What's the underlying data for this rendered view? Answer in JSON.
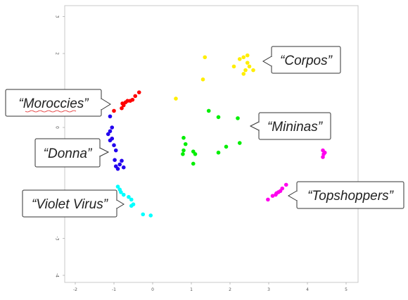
{
  "chart_data": {
    "type": "scatter",
    "title": "",
    "xlabel": "",
    "ylabel": "",
    "xlim": [
      -2.3,
      5.3
    ],
    "ylim": [
      -4.3,
      3.3
    ],
    "x_ticks": [
      "-2",
      "-1",
      "0",
      "1",
      "2",
      "3",
      "4",
      "5"
    ],
    "y_ticks": [
      "3",
      "2",
      "1",
      "0",
      "-1",
      "-2",
      "-3",
      "-4"
    ],
    "grid": false,
    "series": [
      {
        "name": "“Corpos”",
        "color": "#ffee00",
        "points": [
          [
            1.35,
            1.9
          ],
          [
            2.1,
            1.65
          ],
          [
            2.25,
            1.85
          ],
          [
            2.35,
            1.9
          ],
          [
            2.45,
            1.95
          ],
          [
            2.45,
            1.75
          ],
          [
            2.4,
            1.55
          ],
          [
            2.35,
            1.45
          ],
          [
            2.5,
            1.65
          ],
          [
            2.6,
            1.55
          ],
          [
            1.3,
            1.3
          ],
          [
            0.6,
            0.78
          ]
        ]
      },
      {
        "name": "“Moroccies”",
        "color": "#ff0000",
        "points": [
          [
            -1.0,
            0.45
          ],
          [
            -0.8,
            0.52
          ],
          [
            -0.75,
            0.6
          ],
          [
            -0.7,
            0.68
          ],
          [
            -0.65,
            0.72
          ],
          [
            -0.58,
            0.72
          ],
          [
            -0.52,
            0.75
          ],
          [
            -0.45,
            0.85
          ],
          [
            -0.35,
            0.95
          ],
          [
            -0.78,
            0.65
          ]
        ]
      },
      {
        "name": "“Donna”",
        "color": "#2200ee",
        "points": [
          [
            -1.1,
            0.3
          ],
          [
            -1.05,
            0.0
          ],
          [
            -1.15,
            -0.18
          ],
          [
            -1.1,
            -0.35
          ],
          [
            -1.0,
            -0.48
          ],
          [
            -0.95,
            -0.62
          ],
          [
            -0.98,
            -0.88
          ],
          [
            -0.85,
            -1.0
          ],
          [
            -0.75,
            -1.08
          ],
          [
            -0.9,
            -1.12
          ],
          [
            -1.05,
            -0.3
          ],
          [
            -1.1,
            -0.1
          ],
          [
            -0.8,
            -0.9
          ],
          [
            -0.95,
            -1.05
          ]
        ]
      },
      {
        "name": "“Violet Virus”",
        "color": "#00ffff",
        "points": [
          [
            -0.9,
            -1.6
          ],
          [
            -0.85,
            -1.68
          ],
          [
            -0.82,
            -1.75
          ],
          [
            -0.75,
            -1.82
          ],
          [
            -0.62,
            -1.88
          ],
          [
            -0.55,
            -1.95
          ],
          [
            -0.5,
            -2.08
          ],
          [
            -0.55,
            -2.12
          ],
          [
            -0.25,
            -2.35
          ],
          [
            -0.05,
            -2.38
          ]
        ]
      },
      {
        "name": "“Mininas”",
        "color": "#00ee00",
        "points": [
          [
            0.8,
            -0.28
          ],
          [
            0.85,
            -0.45
          ],
          [
            0.8,
            -0.62
          ],
          [
            0.78,
            -0.72
          ],
          [
            1.05,
            -0.65
          ],
          [
            1.1,
            -0.72
          ],
          [
            1.05,
            -0.98
          ],
          [
            1.45,
            0.45
          ],
          [
            1.7,
            0.28
          ],
          [
            2.2,
            0.25
          ],
          [
            1.9,
            -0.52
          ],
          [
            2.25,
            -0.42
          ],
          [
            1.7,
            -0.68
          ]
        ]
      },
      {
        "name": "“Topshoppers”",
        "color": "#ff00ee",
        "points": [
          [
            4.4,
            -0.62
          ],
          [
            4.42,
            -0.72
          ],
          [
            4.4,
            -0.8
          ],
          [
            4.45,
            -0.68
          ],
          [
            3.45,
            -1.55
          ],
          [
            3.35,
            -1.65
          ],
          [
            3.3,
            -1.72
          ],
          [
            3.25,
            -1.75
          ],
          [
            3.2,
            -1.78
          ],
          [
            3.18,
            -1.82
          ],
          [
            3.1,
            -1.85
          ],
          [
            2.98,
            -1.95
          ]
        ]
      }
    ]
  }
}
